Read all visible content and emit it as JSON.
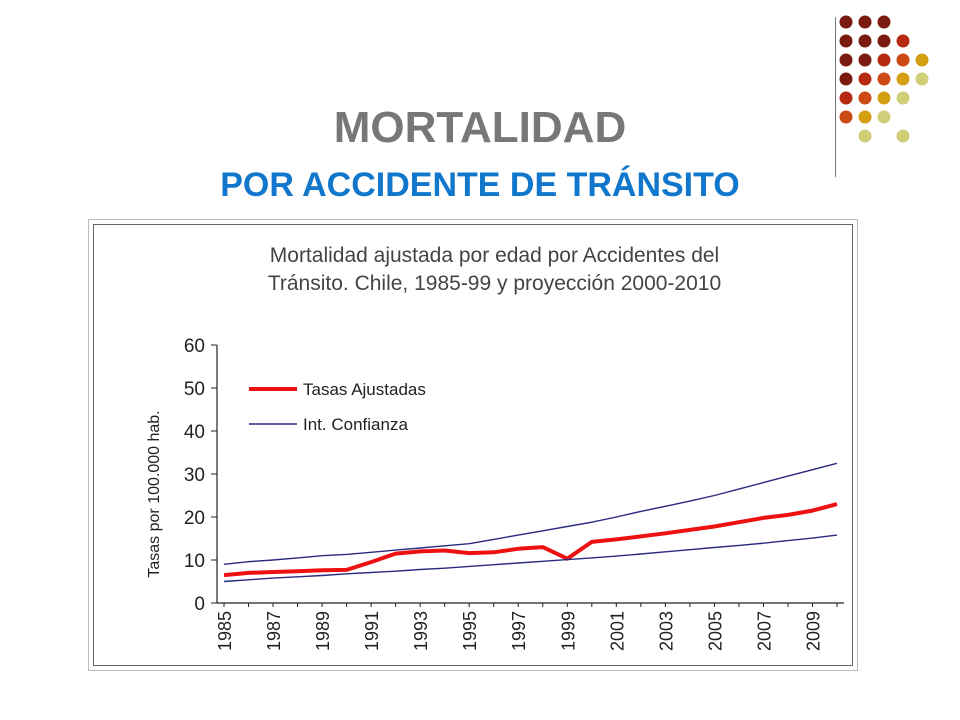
{
  "slide": {
    "title": "MORTALIDAD",
    "subtitle": "POR ACCIDENTE DE TRÁNSITO"
  },
  "colors": {
    "title": "#777777",
    "subtitle": "#1177cc",
    "dot_palette": [
      "#7a1a10",
      "#b52a10",
      "#cc4a14",
      "#d4a012",
      "#cfcf79"
    ]
  },
  "chart_data": {
    "type": "line",
    "title_lines": [
      "Mortalidad ajustada por edad por Accidentes del",
      "Tránsito. Chile, 1985-99 y proyección 2000-2010"
    ],
    "xlabel": "",
    "ylabel": "Tasas por 100.000 hab.",
    "ylim": [
      0,
      60
    ],
    "yticks": [
      0,
      10,
      20,
      30,
      40,
      50,
      60
    ],
    "x": [
      1985,
      1986,
      1987,
      1988,
      1989,
      1990,
      1991,
      1992,
      1993,
      1994,
      1995,
      1996,
      1997,
      1998,
      1999,
      2000,
      2001,
      2002,
      2003,
      2004,
      2005,
      2006,
      2007,
      2008,
      2009,
      2010
    ],
    "xtick_labels": [
      "1985",
      "1987",
      "1989",
      "1991",
      "1993",
      "1995",
      "1997",
      "1999",
      "2001",
      "2003",
      "2005",
      "2007",
      "2009"
    ],
    "legend_position": "top-left",
    "grid": false,
    "series": [
      {
        "name": "Tasas Ajustadas",
        "color": "#ee1111",
        "values": [
          6.5,
          7.0,
          7.2,
          7.4,
          7.6,
          7.7,
          9.5,
          11.5,
          12.0,
          12.2,
          11.6,
          11.8,
          12.6,
          13.0,
          10.3,
          14.2,
          14.8,
          15.5,
          16.2,
          17.0,
          17.8,
          18.8,
          19.8,
          20.5,
          21.5,
          23.0
        ]
      },
      {
        "name": "Int. Confianza",
        "color": "#2a2a80",
        "values": [
          9.0,
          9.6,
          10.0,
          10.5,
          11.0,
          11.3,
          11.8,
          12.3,
          12.8,
          13.3,
          13.8,
          14.8,
          15.8,
          16.8,
          17.8,
          18.8,
          20.0,
          21.3,
          22.5,
          23.7,
          25.0,
          26.5,
          28.0,
          29.5,
          31.0,
          32.5
        ]
      },
      {
        "color": "#2a2a80",
        "values": [
          5.0,
          5.4,
          5.8,
          6.1,
          6.4,
          6.8,
          7.1,
          7.4,
          7.8,
          8.1,
          8.5,
          8.9,
          9.3,
          9.7,
          10.1,
          10.5,
          10.9,
          11.4,
          11.9,
          12.4,
          12.9,
          13.4,
          13.9,
          14.5,
          15.1,
          15.8
        ]
      }
    ]
  }
}
